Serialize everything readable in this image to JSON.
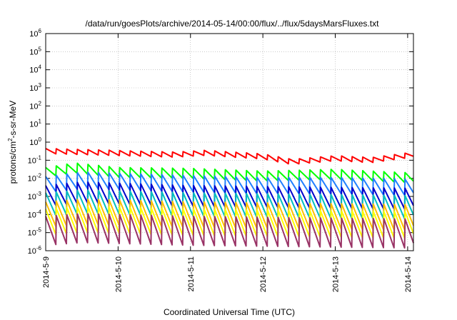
{
  "chart_data": {
    "type": "line",
    "title": "/data/run/goesPlots/archive/2014-05-14/00:00/flux/../flux/5daysMarsFluxes.txt",
    "xlabel": "Coordinated Universal Time (UTC)",
    "ylabel_parts": [
      "protons/cm",
      "2",
      "-s-sr-MeV"
    ],
    "yscale": "log",
    "ylim_exp": [
      -6,
      6
    ],
    "ytick_labels": [
      {
        "base": "10",
        "exp": "-6"
      },
      {
        "base": "10",
        "exp": "-5"
      },
      {
        "base": "10",
        "exp": "-4"
      },
      {
        "base": "10",
        "exp": "-3"
      },
      {
        "base": "10",
        "exp": "-2"
      },
      {
        "base": "10",
        "exp": "-1"
      },
      {
        "base": "10",
        "exp": "0"
      },
      {
        "base": "10",
        "exp": "1"
      },
      {
        "base": "10",
        "exp": "2"
      },
      {
        "base": "10",
        "exp": "3"
      },
      {
        "base": "10",
        "exp": "4"
      },
      {
        "base": "10",
        "exp": "5"
      },
      {
        "base": "10",
        "exp": "6"
      }
    ],
    "xlim_days": [
      0,
      5.08
    ],
    "xtick_labels": [
      "2014-5-9",
      "2014-5-10",
      "2014-5-11",
      "2014-5-12",
      "2014-5-13",
      "2014-5-14"
    ],
    "grid": true,
    "sawtooth_period_days": 0.146,
    "series": [
      {
        "color": "#ff0000",
        "start_days": 0.0,
        "peak_x": [
          0,
          1.8,
          2.2,
          3.0,
          3.4,
          4.0,
          4.5,
          5.08
        ],
        "peak_log": [
          -0.35,
          -0.55,
          -0.45,
          -0.65,
          -0.95,
          -0.75,
          -0.85,
          -0.55
        ],
        "drop": 0.28
      },
      {
        "color": "#00ff00",
        "start_days": 0.0,
        "peak_x": [
          0,
          0.4,
          1.0,
          2.0,
          3.0,
          4.0,
          4.5,
          5.08
        ],
        "peak_log": [
          -1.4,
          -1.15,
          -1.4,
          -1.45,
          -1.6,
          -1.5,
          -1.6,
          -1.7
        ],
        "drop": 0.55
      },
      {
        "color": "#1f7fff",
        "start_days": 0.0,
        "peak_x": [
          0,
          0.5,
          2.0,
          3.0,
          4.0,
          5.08
        ],
        "peak_log": [
          -1.9,
          -1.65,
          -1.85,
          -1.95,
          -1.95,
          -2.05
        ],
        "drop": 0.9
      },
      {
        "color": "#0000cc",
        "start_days": 0.0,
        "peak_x": [
          0,
          0.5,
          2.0,
          3.0,
          4.0,
          5.08
        ],
        "peak_log": [
          -2.4,
          -2.2,
          -2.4,
          -2.45,
          -2.5,
          -2.55
        ],
        "drop": 1.15
      },
      {
        "color": "#00bfbf",
        "start_days": 0.0,
        "peak_x": [
          0,
          0.5,
          2.0,
          3.0,
          4.0,
          5.08
        ],
        "peak_log": [
          -2.8,
          -2.65,
          -2.8,
          -2.85,
          -2.9,
          -2.95
        ],
        "drop": 1.3
      },
      {
        "color": "#ffbf00",
        "start_days": 0.0,
        "peak_x": [
          0,
          0.5,
          2.0,
          3.0,
          4.0,
          5.08
        ],
        "peak_log": [
          -3.3,
          -3.15,
          -3.3,
          -3.35,
          -3.4,
          -3.45
        ],
        "drop": 1.4
      },
      {
        "color": "#ffff00",
        "start_days": 0.0,
        "peak_x": [
          0,
          0.5,
          2.0,
          3.0,
          4.0,
          5.08
        ],
        "peak_log": [
          -3.7,
          -3.55,
          -3.7,
          -3.75,
          -3.8,
          -3.85
        ],
        "drop": 1.45
      },
      {
        "color": "#993366",
        "start_days": 0.0,
        "peak_x": [
          0,
          0.5,
          2.0,
          3.0,
          4.0,
          5.08
        ],
        "peak_log": [
          -4.1,
          -3.95,
          -4.1,
          -4.15,
          -4.2,
          -4.25
        ],
        "drop": 1.6
      }
    ]
  }
}
